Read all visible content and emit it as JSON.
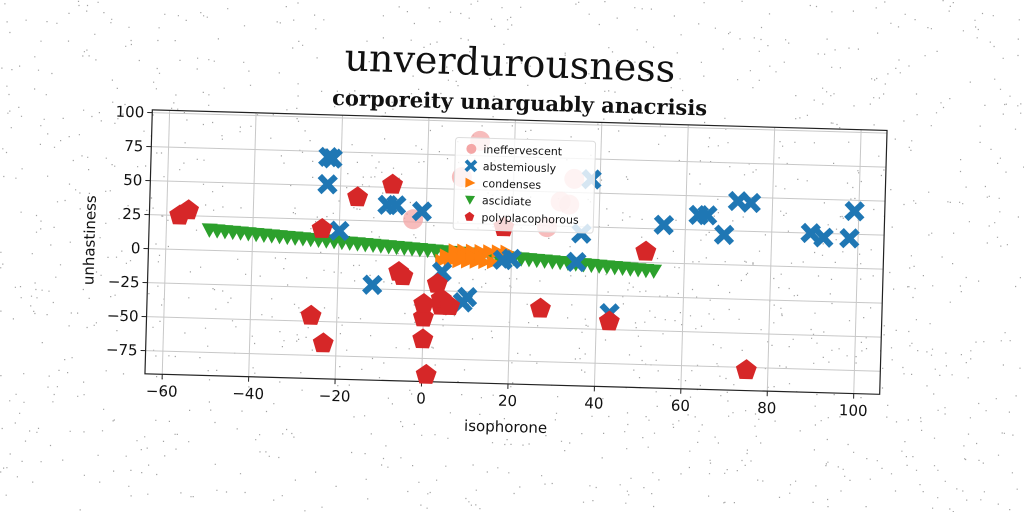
{
  "figure": {
    "suptitle": "unverdurousness"
  },
  "colors": {
    "abstemiously": "#1f77b4",
    "condenses": "#ff7f0e",
    "ascidiate": "#2ca02c",
    "polyplacophorous": "#d62728",
    "ineffervescent": "#f4a6a6",
    "grid": "#c8c8c8"
  },
  "chart_data": {
    "type": "scatter",
    "title": "corporeity unarguably anacrisis",
    "xlabel": "isophorone",
    "ylabel": "unhastiness",
    "xlim": [
      -64,
      106
    ],
    "ylim": [
      -92,
      102
    ],
    "xticks": [
      -60,
      -40,
      -20,
      0,
      20,
      40,
      60,
      80,
      100
    ],
    "yticks": [
      -75,
      -50,
      -25,
      0,
      25,
      50,
      75,
      100
    ],
    "tick_labels_x": [
      "−60",
      "−40",
      "−20",
      "0",
      "20",
      "40",
      "60",
      "80",
      "100"
    ],
    "tick_labels_y": [
      "−75",
      "−50",
      "−25",
      "0",
      "25",
      "50",
      "75",
      "100"
    ],
    "grid": true,
    "legend_position": "top-center",
    "legend": [
      "ineffervescent",
      "abstemiously",
      "condenses",
      "ascidiate",
      "polyplacophorous"
    ],
    "series": [
      {
        "name": "ineffervescent",
        "marker": "circle",
        "x": [
          12,
          8,
          34,
          31,
          -3,
          33,
          28
        ],
        "y": [
          86,
          59,
          60,
          43,
          27,
          41,
          24
        ]
      },
      {
        "name": "abstemiously",
        "marker": "x",
        "x": [
          -22,
          -23,
          -23,
          -9,
          -7,
          -1,
          -20,
          -12,
          4,
          9,
          10,
          18,
          36,
          35,
          38,
          43,
          55,
          63,
          65,
          69,
          72,
          75,
          89,
          92,
          98,
          99,
          20
        ],
        "y": [
          70,
          71,
          51,
          37,
          37,
          33,
          17,
          -22,
          -11,
          -33,
          -29,
          -1,
          20,
          -1,
          60,
          -38,
          28,
          36,
          36,
          22,
          47,
          46,
          25,
          22,
          22,
          42,
          0
        ]
      },
      {
        "name": "condenses",
        "marker": "triangle-right",
        "x": [
          7,
          9,
          11,
          13,
          15,
          17,
          19,
          4,
          6,
          8,
          10,
          12,
          14,
          16,
          5,
          7,
          9,
          11,
          13
        ],
        "y": [
          5,
          5,
          5,
          5,
          5,
          5,
          5,
          -3,
          -3,
          -3,
          -3,
          -3,
          -3,
          -3,
          1,
          1,
          1,
          1,
          1
        ]
      },
      {
        "name": "ascidiate",
        "marker": "triangle-down",
        "line": {
          "x0": -50,
          "y0": 15,
          "x1": 53,
          "y1": -6,
          "count": 58
        }
      },
      {
        "name": "polyplacophorous",
        "marker": "pentagon",
        "x": [
          -57,
          -55,
          -24,
          -16,
          -8,
          -6,
          -5,
          -26,
          -23,
          0,
          0,
          0,
          1,
          3,
          4,
          4,
          6,
          18,
          27,
          43,
          51,
          75
        ],
        "y": [
          25,
          29,
          18,
          42,
          52,
          -12,
          -15,
          -46,
          -66,
          -61,
          -45,
          -35,
          -87,
          -20,
          -36,
          -31,
          -36,
          23,
          -36,
          -44,
          8,
          -77
        ]
      }
    ]
  }
}
